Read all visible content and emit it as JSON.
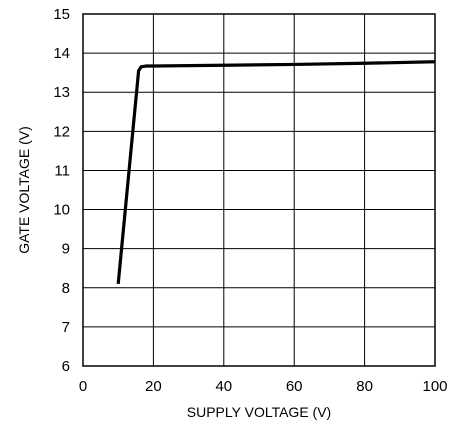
{
  "chart_data": {
    "type": "line",
    "title": "",
    "xlabel": "SUPPLY VOLTAGE (V)",
    "ylabel": "GATE VOLTAGE (V)",
    "xlim": [
      0,
      100
    ],
    "ylim": [
      6,
      15
    ],
    "xticks": [
      0,
      20,
      40,
      60,
      80,
      100
    ],
    "yticks": [
      6,
      7,
      8,
      9,
      10,
      11,
      12,
      13,
      14,
      15
    ],
    "grid": true,
    "series": [
      {
        "name": "",
        "color": "#000000",
        "x": [
          10,
          15.8,
          16.5,
          18,
          20,
          40,
          60,
          80,
          100
        ],
        "y": [
          8.1,
          13.55,
          13.65,
          13.67,
          13.67,
          13.69,
          13.71,
          13.74,
          13.78
        ]
      }
    ]
  }
}
